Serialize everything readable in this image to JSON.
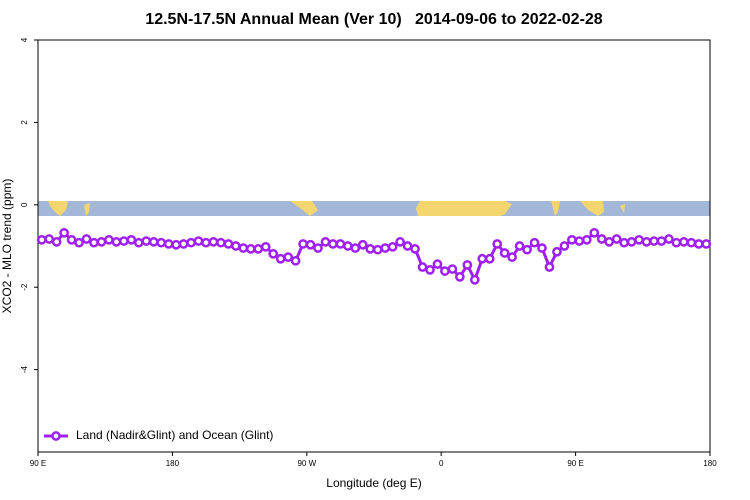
{
  "chart_data": {
    "type": "line",
    "title": "12.5N-17.5N Annual Mean (Ver 10)   2014-09-06 to 2022-02-28",
    "x_label": "Longitude (deg E)",
    "y_label": "XCO2 - MLO trend (ppm)",
    "x": [
      92.5,
      97.5,
      102.5,
      107.5,
      112.5,
      117.5,
      122.5,
      127.5,
      132.5,
      137.5,
      142.5,
      147.5,
      152.5,
      157.5,
      162.5,
      167.5,
      172.5,
      177.5,
      182.5,
      187.5,
      192.5,
      197.5,
      202.5,
      207.5,
      212.5,
      217.5,
      222.5,
      227.5,
      232.5,
      237.5,
      242.5,
      247.5,
      252.5,
      257.5,
      262.5,
      267.5,
      272.5,
      277.5,
      282.5,
      287.5,
      292.5,
      297.5,
      302.5,
      307.5,
      312.5,
      317.5,
      322.5,
      327.5,
      332.5,
      337.5,
      342.5,
      347.5,
      352.5,
      357.5,
      362.5,
      367.5,
      372.5,
      377.5,
      382.5,
      387.5,
      392.5,
      397.5,
      402.5,
      407.5,
      412.5,
      417.5,
      422.5,
      427.5,
      432.5,
      437.5,
      442.5,
      447.5,
      452.5,
      457.5,
      462.5,
      467.5,
      472.5,
      477.5,
      482.5,
      487.5,
      492.5,
      497.5,
      502.5,
      507.5,
      512.5,
      517.5,
      522.5,
      527.5,
      532.5,
      537.5
    ],
    "series": [
      {
        "name": "Land (Nadir&Glint) and Ocean (Glint)",
        "color": "#a020f0",
        "values": [
          -0.85,
          -0.83,
          -0.9,
          -0.68,
          -0.85,
          -0.92,
          -0.83,
          -0.92,
          -0.9,
          -0.85,
          -0.9,
          -0.88,
          -0.85,
          -0.92,
          -0.88,
          -0.9,
          -0.92,
          -0.95,
          -0.97,
          -0.95,
          -0.92,
          -0.88,
          -0.92,
          -0.9,
          -0.92,
          -0.95,
          -1.0,
          -1.05,
          -1.07,
          -1.07,
          -1.02,
          -1.19,
          -1.31,
          -1.27,
          -1.36,
          -0.95,
          -0.97,
          -1.05,
          -0.9,
          -0.95,
          -0.95,
          -1.0,
          -1.05,
          -0.97,
          -1.07,
          -1.09,
          -1.05,
          -1.02,
          -0.9,
          -1.0,
          -1.07,
          -1.51,
          -1.58,
          -1.44,
          -1.61,
          -1.56,
          -1.75,
          -1.46,
          -1.82,
          -1.31,
          -1.31,
          -0.95,
          -1.17,
          -1.27,
          -1.0,
          -1.09,
          -0.92,
          -1.05,
          -1.51,
          -1.14,
          -1.0,
          -0.85,
          -0.88,
          -0.85,
          -0.68,
          -0.83,
          -0.9,
          -0.83,
          -0.92,
          -0.9,
          -0.85,
          -0.9,
          -0.88,
          -0.88,
          -0.83,
          -0.92,
          -0.9,
          -0.92,
          -0.95,
          -0.95
        ]
      }
    ],
    "xlim": [
      90,
      540
    ],
    "xticks": [
      {
        "value": 90,
        "label": "90 E"
      },
      180,
      {
        "value": 270,
        "label": "90 W"
      },
      {
        "value": 360,
        "label": "0"
      },
      {
        "value": 450,
        "label": "90 E"
      },
      {
        "value": 540,
        "label": "180"
      }
    ],
    "ylim": [
      -6,
      4
    ],
    "yticks": [
      -4,
      -2,
      0,
      2,
      4
    ],
    "legend": "lower left"
  }
}
